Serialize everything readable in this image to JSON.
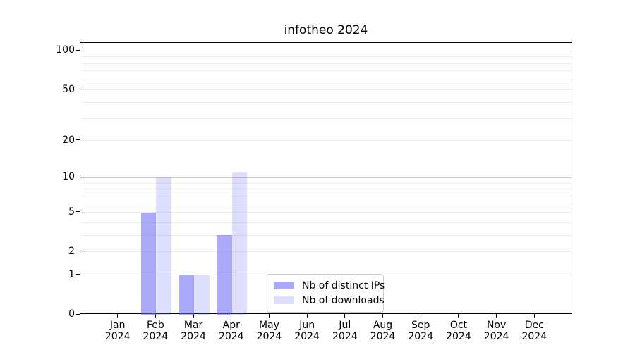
{
  "chart_data": {
    "type": "bar",
    "title": "infotheo 2024",
    "x_categories": [
      "Jan",
      "Feb",
      "Mar",
      "Apr",
      "May",
      "Jun",
      "Jul",
      "Aug",
      "Sep",
      "Oct",
      "Nov",
      "Dec"
    ],
    "x_year": "2024",
    "series": [
      {
        "name": "Nb of distinct IPs",
        "color": "rgba(104,104,245,0.56)",
        "values": [
          0,
          5,
          1,
          3,
          0,
          0,
          0,
          0,
          0,
          0,
          0,
          0
        ]
      },
      {
        "name": "Nb of downloads",
        "color": "rgba(104,104,245,0.22)",
        "values": [
          0,
          10,
          1,
          11,
          0,
          0,
          0,
          0,
          0,
          0,
          0,
          0
        ]
      }
    ],
    "y_scale": "log1p",
    "y_ticks": [
      0,
      1,
      2,
      5,
      10,
      20,
      50,
      100
    ],
    "y_max": 115,
    "y_major_gridlines": [
      1,
      10,
      100
    ],
    "y_minor_gridlines": [
      2,
      3,
      4,
      5,
      6,
      7,
      8,
      9,
      20,
      30,
      40,
      50,
      60,
      70,
      80,
      90
    ],
    "xlim": [
      -1,
      12
    ],
    "grid": "on",
    "legend_position": "lower center"
  }
}
